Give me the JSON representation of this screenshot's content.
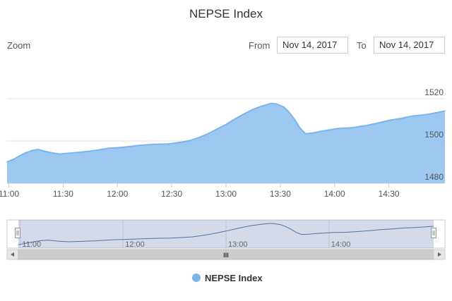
{
  "zoom": {
    "label": "Zoom"
  },
  "range_selector": {
    "from_label": "From",
    "from_value": "Nov 14, 2017",
    "to_label": "To",
    "to_value": "Nov 14, 2017"
  },
  "navigator": {
    "x_ticks": [
      "11:00",
      "12:00",
      "13:00",
      "14:00"
    ],
    "scrollbar_grip": "III"
  },
  "chart_data": {
    "type": "area",
    "title": "NEPSE Index",
    "color": "#7cb5ec",
    "x_tick_labels": [
      "11:00",
      "11:30",
      "12:00",
      "12:30",
      "13:00",
      "13:30",
      "14:00",
      "14:30"
    ],
    "y_tick_labels": [
      "1480",
      "1500",
      "1520"
    ],
    "ylim": [
      1480,
      1520
    ],
    "grid": true,
    "legend_position": "bottom",
    "series": [
      {
        "name": "NEPSE Index",
        "x": [
          "10:59",
          "11:03",
          "11:06",
          "11:09",
          "11:13",
          "11:16",
          "11:19",
          "11:23",
          "11:28",
          "11:33",
          "11:38",
          "11:43",
          "11:50",
          "11:55",
          "12:00",
          "12:05",
          "12:12",
          "12:20",
          "12:28",
          "12:35",
          "12:40",
          "12:45",
          "12:50",
          "12:55",
          "13:00",
          "13:05",
          "13:10",
          "13:15",
          "13:20",
          "13:25",
          "13:28",
          "13:32",
          "13:35",
          "13:38",
          "13:41",
          "13:44",
          "13:48",
          "13:52",
          "13:57",
          "14:02",
          "14:10",
          "14:18",
          "14:24",
          "14:30",
          "14:37",
          "14:43",
          "14:50",
          "14:56",
          "15:01"
        ],
        "values": [
          1490.1,
          1491.5,
          1493.0,
          1494.3,
          1495.5,
          1496.0,
          1495.3,
          1494.5,
          1493.8,
          1494.2,
          1494.6,
          1495.0,
          1495.8,
          1496.6,
          1496.8,
          1497.2,
          1497.9,
          1498.4,
          1498.6,
          1499.4,
          1500.2,
          1501.6,
          1503.4,
          1505.6,
          1507.8,
          1510.4,
          1512.8,
          1515.0,
          1516.5,
          1517.8,
          1517.5,
          1516.0,
          1513.5,
          1510.0,
          1506.0,
          1503.4,
          1503.8,
          1504.5,
          1505.2,
          1505.9,
          1506.3,
          1507.4,
          1508.5,
          1509.7,
          1510.7,
          1511.8,
          1512.4,
          1513.3,
          1514.2
        ]
      }
    ]
  }
}
